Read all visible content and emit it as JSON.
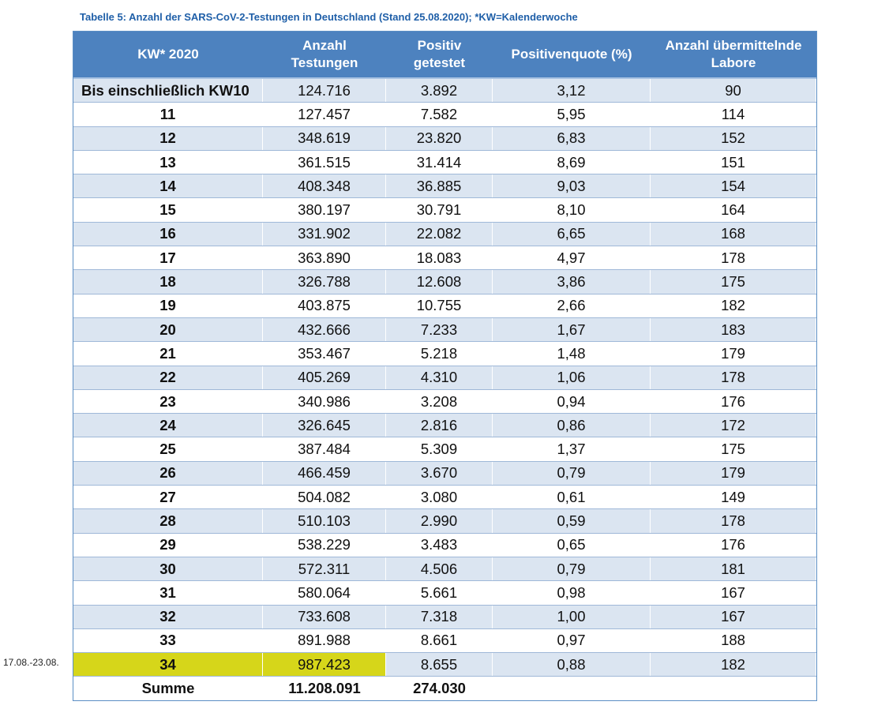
{
  "caption": "Tabelle 5: Anzahl der SARS-CoV-2-Testungen in Deutschland (Stand 25.08.2020); *KW=Kalenderwoche",
  "side_note": "17.08.-23.08.",
  "headers": {
    "kw": "KW* 2020",
    "tests_1": "Anzahl",
    "tests_2": "Testungen",
    "pos_1": "Positiv",
    "pos_2": "getestet",
    "quote": "Positivenquote (%)",
    "labs_1": "Anzahl übermittelnde",
    "labs_2": "Labore"
  },
  "rows": [
    {
      "kw": "Bis einschließlich KW10",
      "tests": "124.716",
      "pos": "3.892",
      "quote": "3,12",
      "labs": "90"
    },
    {
      "kw": "11",
      "tests": "127.457",
      "pos": "7.582",
      "quote": "5,95",
      "labs": "114"
    },
    {
      "kw": "12",
      "tests": "348.619",
      "pos": "23.820",
      "quote": "6,83",
      "labs": "152"
    },
    {
      "kw": "13",
      "tests": "361.515",
      "pos": "31.414",
      "quote": "8,69",
      "labs": "151"
    },
    {
      "kw": "14",
      "tests": "408.348",
      "pos": "36.885",
      "quote": "9,03",
      "labs": "154"
    },
    {
      "kw": "15",
      "tests": "380.197",
      "pos": "30.791",
      "quote": "8,10",
      "labs": "164"
    },
    {
      "kw": "16",
      "tests": "331.902",
      "pos": "22.082",
      "quote": "6,65",
      "labs": "168"
    },
    {
      "kw": "17",
      "tests": "363.890",
      "pos": "18.083",
      "quote": "4,97",
      "labs": "178"
    },
    {
      "kw": "18",
      "tests": "326.788",
      "pos": "12.608",
      "quote": "3,86",
      "labs": "175"
    },
    {
      "kw": "19",
      "tests": "403.875",
      "pos": "10.755",
      "quote": "2,66",
      "labs": "182"
    },
    {
      "kw": "20",
      "tests": "432.666",
      "pos": "7.233",
      "quote": "1,67",
      "labs": "183"
    },
    {
      "kw": "21",
      "tests": "353.467",
      "pos": "5.218",
      "quote": "1,48",
      "labs": "179"
    },
    {
      "kw": "22",
      "tests": "405.269",
      "pos": "4.310",
      "quote": "1,06",
      "labs": "178"
    },
    {
      "kw": "23",
      "tests": "340.986",
      "pos": "3.208",
      "quote": "0,94",
      "labs": "176"
    },
    {
      "kw": "24",
      "tests": "326.645",
      "pos": "2.816",
      "quote": "0,86",
      "labs": "172"
    },
    {
      "kw": "25",
      "tests": "387.484",
      "pos": "5.309",
      "quote": "1,37",
      "labs": "175"
    },
    {
      "kw": "26",
      "tests": "466.459",
      "pos": "3.670",
      "quote": "0,79",
      "labs": "179"
    },
    {
      "kw": "27",
      "tests": "504.082",
      "pos": "3.080",
      "quote": "0,61",
      "labs": "149"
    },
    {
      "kw": "28",
      "tests": "510.103",
      "pos": "2.990",
      "quote": "0,59",
      "labs": "178"
    },
    {
      "kw": "29",
      "tests": "538.229",
      "pos": "3.483",
      "quote": "0,65",
      "labs": "176"
    },
    {
      "kw": "30",
      "tests": "572.311",
      "pos": "4.506",
      "quote": "0,79",
      "labs": "181"
    },
    {
      "kw": "31",
      "tests": "580.064",
      "pos": "5.661",
      "quote": "0,98",
      "labs": "167"
    },
    {
      "kw": "32",
      "tests": "733.608",
      "pos": "7.318",
      "quote": "1,00",
      "labs": "167"
    },
    {
      "kw": "33",
      "tests": "891.988",
      "pos": "8.661",
      "quote": "0,97",
      "labs": "188"
    },
    {
      "kw": "34",
      "tests": "987.423",
      "pos": "8.655",
      "quote": "0,88",
      "labs": "182"
    }
  ],
  "total": {
    "label": "Summe",
    "tests": "11.208.091",
    "pos": "274.030"
  },
  "colors": {
    "header_bg": "#4d82bf",
    "stripe": "#dbe5f1",
    "highlight": "#d6d61a",
    "caption": "#1f5fa8"
  }
}
